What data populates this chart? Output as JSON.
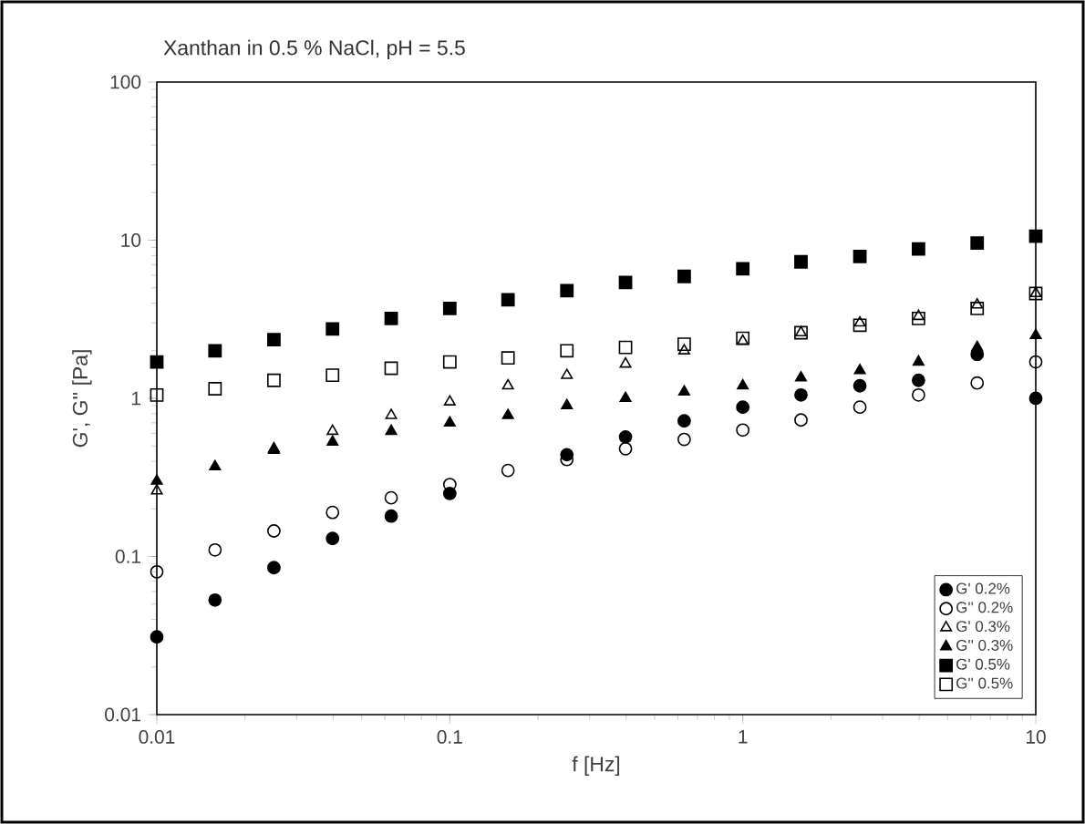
{
  "chart_data": {
    "type": "scatter",
    "title": "Xanthan in 0.5 % NaCl, pH = 5.5",
    "xlabel": "f [Hz]",
    "ylabel": "G', G'' [Pa]",
    "x": [
      0.01,
      0.0158,
      0.0251,
      0.0398,
      0.0631,
      0.1,
      0.158,
      0.251,
      0.398,
      0.631,
      1,
      1.58,
      2.51,
      3.98,
      6.31,
      10
    ],
    "series": [
      {
        "name": "G'  0.2%",
        "color": "#000000",
        "marker": "circle",
        "values": [
          0.031,
          0.053,
          0.085,
          0.13,
          0.18,
          0.25,
          null,
          0.44,
          0.57,
          0.72,
          0.88,
          1.05,
          1.2,
          1.3,
          1.9,
          1.0
        ]
      },
      {
        "name": "G'' 0.2%",
        "color": "#000000",
        "marker": "circle",
        "values": [
          0.08,
          0.11,
          0.145,
          0.19,
          0.235,
          0.285,
          0.35,
          0.41,
          0.48,
          0.55,
          0.63,
          0.73,
          0.88,
          1.05,
          1.25,
          1.7
        ]
      },
      {
        "name": "G'  0.3%",
        "color": "#000000",
        "marker": "triangle",
        "values": [
          0.26,
          null,
          0.48,
          0.62,
          0.78,
          0.95,
          1.2,
          1.4,
          1.65,
          2.0,
          2.3,
          2.6,
          3.0,
          3.3,
          3.9,
          4.6
        ]
      },
      {
        "name": "G'' 0.3%",
        "color": "#000000",
        "marker": "triangle",
        "values": [
          0.3,
          0.37,
          0.47,
          0.53,
          0.62,
          0.7,
          0.78,
          0.9,
          1.0,
          1.1,
          1.2,
          1.35,
          1.5,
          1.7,
          2.1,
          2.5
        ]
      },
      {
        "name": "G'  0.5%",
        "color": "#000000",
        "marker": "square",
        "values": [
          1.7,
          2.0,
          2.35,
          2.75,
          3.2,
          3.7,
          4.2,
          4.8,
          5.4,
          5.9,
          6.6,
          7.3,
          7.9,
          8.8,
          9.6,
          10.6
        ]
      },
      {
        "name": "G'' 0.5%",
        "color": "#000000",
        "marker": "square",
        "values": [
          1.05,
          1.15,
          1.3,
          1.4,
          1.55,
          1.7,
          1.8,
          2.0,
          2.1,
          2.2,
          2.4,
          2.6,
          2.9,
          3.2,
          3.7,
          4.6
        ]
      }
    ],
    "log": "xy",
    "xlim": [
      0.01,
      10
    ],
    "ylim": [
      0.01,
      100
    ],
    "xticks": [
      0.01,
      0.1,
      1,
      10
    ],
    "yticks": [
      0.01,
      0.1,
      1,
      10,
      100
    ],
    "legend": "bottom right",
    "grid": false
  }
}
